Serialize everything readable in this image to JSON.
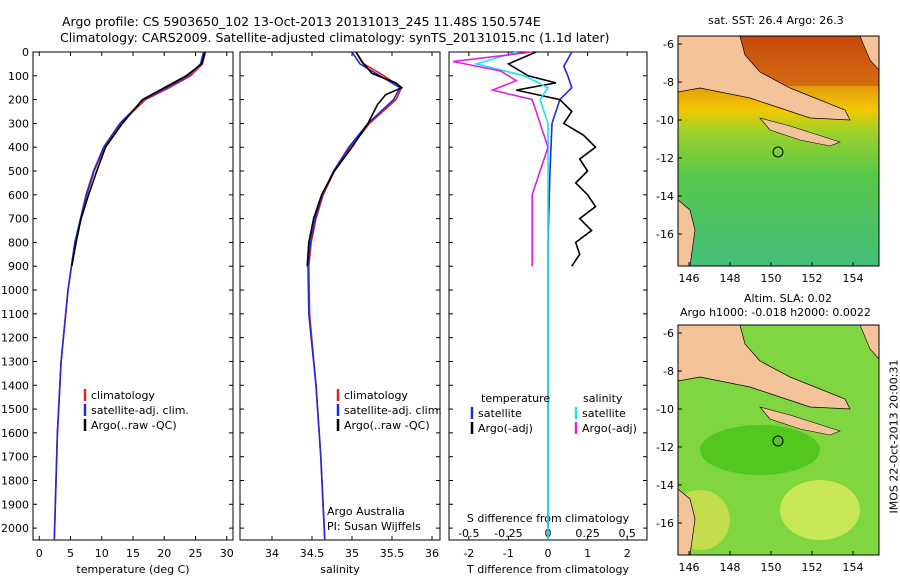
{
  "header": {
    "line1": "Argo profile: CS 5903650_102 13-Oct-2013 20131013_245 11.48S 150.574E",
    "line2": "Climatology: CARS2009. Satellite-adjusted climatology: synTS_20131015.nc (1.1d later)"
  },
  "colors": {
    "climatology": "#e8201c",
    "satellite": "#1d2bd8",
    "argo": "#000000",
    "sat_salinity": "#1ee0f0",
    "argo_salinity": "#e020e0"
  },
  "chart_data": [
    {
      "type": "line",
      "name": "temperature",
      "xlabel": "temperature (deg C)",
      "xlim": [
        -1,
        31
      ],
      "xticks": [
        "0",
        "5",
        "10",
        "15",
        "20",
        "25",
        "30"
      ],
      "ylim": [
        0,
        2050
      ],
      "yticks": [
        "0",
        "100",
        "200",
        "300",
        "400",
        "500",
        "600",
        "700",
        "800",
        "900",
        "1000",
        "1100",
        "1200",
        "1300",
        "1400",
        "1500",
        "1600",
        "1700",
        "1800",
        "1900",
        "2000"
      ],
      "legend": [
        "climatology",
        "satellite-adj. clim.",
        "Argo(..raw -QC)"
      ],
      "series": [
        {
          "name": "climatology",
          "depth": [
            0,
            50,
            100,
            150,
            200,
            300,
            400,
            500,
            600,
            800,
            1000,
            1300,
            1600,
            2050
          ],
          "values": [
            26.6,
            26.1,
            24.2,
            20.8,
            17.0,
            13.0,
            10.4,
            8.8,
            7.6,
            5.7,
            4.6,
            3.5,
            2.9,
            2.4
          ]
        },
        {
          "name": "satellite-adj. clim.",
          "depth": [
            0,
            50,
            100,
            150,
            200,
            300,
            400,
            500,
            600,
            800,
            1000,
            1300,
            1600,
            2050
          ],
          "values": [
            26.3,
            25.8,
            23.8,
            20.4,
            16.7,
            12.9,
            10.3,
            8.7,
            7.5,
            5.7,
            4.6,
            3.5,
            2.9,
            2.4
          ]
        },
        {
          "name": "Argo(..raw -QC)",
          "depth": [
            0,
            50,
            100,
            150,
            200,
            300,
            400,
            500,
            600,
            700,
            800,
            900
          ],
          "values": [
            26.5,
            26.0,
            23.5,
            20.0,
            16.5,
            13.3,
            10.6,
            9.2,
            7.9,
            6.7,
            5.9,
            5.2
          ]
        }
      ]
    },
    {
      "type": "line",
      "name": "salinity",
      "xlabel": "salinity",
      "xlim": [
        33.6,
        36.1
      ],
      "xticks": [
        "34",
        "34.5",
        "35",
        "35.5",
        "36"
      ],
      "ylim": [
        0,
        2050
      ],
      "legend": [
        "climatology",
        "satellite-adj. clim.",
        "Argo(..raw -QC)"
      ],
      "annotation": [
        "Argo Australia",
        "PI: Susan Wijffels"
      ],
      "series": [
        {
          "name": "climatology",
          "depth": [
            0,
            50,
            100,
            150,
            200,
            300,
            400,
            500,
            600,
            700,
            800,
            900,
            1100,
            1400,
            1700,
            2050
          ],
          "values": [
            35.05,
            35.15,
            35.4,
            35.62,
            35.55,
            35.22,
            34.98,
            34.78,
            34.64,
            34.55,
            34.49,
            34.46,
            34.47,
            34.55,
            34.61,
            34.66
          ]
        },
        {
          "name": "satellite-adj. clim.",
          "depth": [
            0,
            50,
            100,
            150,
            200,
            300,
            400,
            500,
            600,
            700,
            800,
            900,
            1100,
            1400,
            1700,
            2050
          ],
          "values": [
            35.0,
            35.1,
            35.35,
            35.6,
            35.52,
            35.2,
            34.96,
            34.77,
            34.63,
            34.54,
            34.48,
            34.45,
            34.46,
            34.55,
            34.61,
            34.66
          ]
        },
        {
          "name": "Argo(..raw -QC)",
          "depth": [
            0,
            40,
            90,
            130,
            150,
            180,
            220,
            300,
            400,
            500,
            600,
            700,
            800,
            900
          ],
          "values": [
            35.05,
            35.12,
            35.25,
            35.55,
            35.62,
            35.42,
            35.32,
            35.2,
            35.0,
            34.78,
            34.62,
            34.52,
            34.46,
            34.44
          ]
        }
      ]
    },
    {
      "type": "line",
      "name": "differences",
      "xlabel_bottom": "T difference from climatology",
      "xlabel_top": "S difference from climatology",
      "xlim": [
        -2.5,
        2.5
      ],
      "xticks_bottom": [
        "-2",
        "-1",
        "0",
        "1",
        "2"
      ],
      "xticks_top": [
        "-0.5",
        "-0.25",
        "0",
        "0.25",
        "0.5"
      ],
      "ylim": [
        0,
        2050
      ],
      "legend_temperature": {
        "title": "temperature",
        "items": [
          "satellite",
          "Argo(-adj)"
        ]
      },
      "legend_salinity": {
        "title": "salinity",
        "items": [
          "satellite",
          "Argo(-adj)"
        ]
      },
      "series": [
        {
          "name": "T satellite",
          "depth": [
            0,
            60,
            100,
            150,
            200,
            300,
            500,
            800,
            1200,
            1600,
            2050
          ],
          "values": [
            0.6,
            0.4,
            0.5,
            0.6,
            0.3,
            0.1,
            0.05,
            0.0,
            0.0,
            0.0,
            0.0
          ]
        },
        {
          "name": "T Argo(-adj)",
          "depth": [
            0,
            50,
            100,
            130,
            160,
            200,
            250,
            300,
            350,
            400,
            450,
            500,
            550,
            600,
            650,
            700,
            750,
            800,
            850,
            900
          ],
          "values": [
            -0.3,
            -1.0,
            -0.5,
            0.2,
            -0.8,
            0.3,
            0.6,
            0.4,
            0.9,
            1.2,
            0.8,
            1.0,
            0.7,
            1.0,
            1.2,
            0.8,
            1.1,
            0.7,
            0.8,
            0.6
          ]
        },
        {
          "name": "S satellite",
          "depth": [
            0,
            50,
            100,
            150,
            200,
            300,
            500,
            800,
            1200,
            1600,
            2050
          ],
          "values": [
            -0.2,
            -0.45,
            -0.15,
            0.0,
            -0.05,
            0.0,
            0.0,
            0.0,
            0.0,
            0.0,
            0.0
          ]
        },
        {
          "name": "S Argo(-adj)",
          "depth": [
            0,
            40,
            80,
            120,
            160,
            200,
            300,
            400,
            500,
            600,
            700,
            800,
            900
          ],
          "values": [
            -0.1,
            -0.6,
            -0.3,
            -0.2,
            -0.35,
            -0.1,
            -0.05,
            0.0,
            -0.05,
            -0.1,
            -0.1,
            -0.1,
            -0.1
          ]
        }
      ]
    }
  ],
  "map_sst": {
    "title": "sat. SST: 26.4  Argo: 26.3",
    "xticks": [
      "146",
      "148",
      "150",
      "152",
      "154"
    ],
    "yticks": [
      "-6",
      "-8",
      "-10",
      "-12",
      "-14",
      "-16"
    ]
  },
  "map_sla": {
    "title_line1": "Altim. SLA: 0.02",
    "title_line2": "Argo h1000: -0.018 h2000: 0.0022",
    "xticks": [
      "146",
      "148",
      "150",
      "152",
      "154"
    ],
    "yticks": [
      "-6",
      "-8",
      "-10",
      "-12",
      "-14",
      "-16"
    ]
  },
  "footer": {
    "imos_label": "IMOS 22-Oct-2013 20:00:31"
  }
}
